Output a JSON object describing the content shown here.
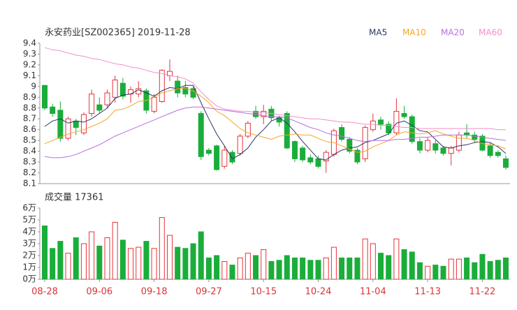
{
  "chart_data": [
    {
      "type": "candlestick",
      "title": "永安药业[SZ002365] 2019-11-28",
      "up_color": "#e8333a",
      "down_color": "#1aad3a",
      "ylim": [
        8.1,
        9.4
      ],
      "yticks": [
        9.4,
        9.3,
        9.2,
        9.1,
        9,
        8.9,
        8.8,
        8.7,
        8.6,
        8.5,
        8.4,
        8.3,
        8.2,
        8.1
      ],
      "open": [
        9.01,
        8.81,
        8.78,
        8.52,
        8.68,
        8.57,
        8.75,
        8.83,
        8.83,
        8.9,
        9.03,
        8.93,
        8.93,
        8.96,
        8.77,
        8.86,
        9.1,
        9.05,
        8.99,
        8.98,
        8.75,
        8.41,
        8.45,
        8.26,
        8.39,
        8.38,
        8.54,
        8.77,
        8.72,
        8.79,
        8.71,
        8.75,
        8.49,
        8.43,
        8.34,
        8.33,
        8.31,
        8.37,
        8.62,
        8.51,
        8.41,
        8.33,
        8.6,
        8.69,
        8.65,
        8.57,
        8.75,
        8.72,
        8.49,
        8.41,
        8.47,
        8.43,
        8.38,
        8.41,
        8.57,
        8.55,
        8.54,
        8.45,
        8.39,
        8.33
      ],
      "high": [
        9.01,
        8.84,
        8.86,
        8.72,
        8.7,
        8.76,
        8.97,
        8.9,
        8.97,
        9.1,
        9.08,
        9.0,
        9.05,
        8.98,
        8.93,
        9.16,
        9.25,
        9.1,
        9.05,
        9.0,
        8.77,
        8.43,
        8.46,
        8.45,
        8.41,
        8.56,
        8.68,
        8.82,
        8.83,
        8.82,
        8.73,
        8.77,
        8.5,
        8.45,
        8.37,
        8.36,
        8.41,
        8.61,
        8.65,
        8.53,
        8.43,
        8.64,
        8.75,
        8.72,
        8.68,
        8.89,
        8.82,
        8.74,
        8.52,
        8.53,
        8.5,
        8.45,
        8.45,
        8.58,
        8.65,
        8.58,
        8.56,
        8.48,
        8.41,
        8.36
      ],
      "low": [
        8.78,
        8.72,
        8.49,
        8.5,
        8.55,
        8.55,
        8.72,
        8.75,
        8.8,
        8.85,
        8.88,
        8.85,
        8.9,
        8.75,
        8.75,
        8.85,
        9.05,
        8.9,
        8.9,
        8.88,
        8.32,
        8.36,
        8.22,
        8.24,
        8.28,
        8.36,
        8.52,
        8.7,
        8.65,
        8.68,
        8.63,
        8.42,
        8.3,
        8.3,
        8.28,
        8.24,
        8.2,
        8.35,
        8.49,
        8.38,
        8.28,
        8.3,
        8.58,
        8.6,
        8.55,
        8.55,
        8.7,
        8.47,
        8.38,
        8.39,
        8.38,
        8.36,
        8.27,
        8.39,
        8.52,
        8.48,
        8.4,
        8.34,
        8.34,
        8.23
      ],
      "close": [
        8.8,
        8.75,
        8.52,
        8.7,
        8.62,
        8.74,
        8.93,
        8.78,
        8.94,
        9.06,
        8.91,
        8.97,
        8.98,
        8.78,
        8.9,
        9.15,
        9.14,
        8.94,
        8.93,
        8.9,
        8.35,
        8.38,
        8.23,
        8.41,
        8.3,
        8.54,
        8.66,
        8.72,
        8.77,
        8.71,
        8.67,
        8.43,
        8.33,
        8.32,
        8.3,
        8.26,
        8.39,
        8.59,
        8.51,
        8.4,
        8.3,
        8.62,
        8.68,
        8.65,
        8.57,
        8.77,
        8.72,
        8.49,
        8.41,
        8.5,
        8.41,
        8.38,
        8.43,
        8.55,
        8.55,
        8.51,
        8.41,
        8.36,
        8.36,
        8.25
      ],
      "series": [
        {
          "name": "MA5",
          "color": "#2b3566",
          "values": [
            8.63,
            8.68,
            8.7,
            8.66,
            8.68,
            8.67,
            8.7,
            8.75,
            8.8,
            8.89,
            8.92,
            8.93,
            8.97,
            8.94,
            8.91,
            8.96,
            8.99,
            8.98,
            9.01,
            9.01,
            8.85,
            8.7,
            8.56,
            8.45,
            8.33,
            8.37,
            8.43,
            8.53,
            8.6,
            8.68,
            8.71,
            8.66,
            8.58,
            8.49,
            8.41,
            8.33,
            8.32,
            8.37,
            8.41,
            8.43,
            8.44,
            8.48,
            8.5,
            8.53,
            8.56,
            8.66,
            8.68,
            8.64,
            8.59,
            8.58,
            8.51,
            8.44,
            8.43,
            8.45,
            8.46,
            8.48,
            8.49,
            8.48,
            8.44,
            8.38
          ]
        },
        {
          "name": "MA10",
          "color": "#f5a623",
          "values": [
            8.47,
            8.5,
            8.53,
            8.56,
            8.58,
            8.6,
            8.63,
            8.66,
            8.7,
            8.78,
            8.79,
            8.82,
            8.86,
            8.87,
            8.9,
            8.94,
            8.96,
            8.98,
            8.98,
            8.96,
            8.91,
            8.85,
            8.77,
            8.73,
            8.67,
            8.61,
            8.57,
            8.55,
            8.53,
            8.51,
            8.54,
            8.55,
            8.56,
            8.55,
            8.55,
            8.52,
            8.49,
            8.48,
            8.45,
            8.42,
            8.39,
            8.4,
            8.44,
            8.47,
            8.5,
            8.55,
            8.58,
            8.57,
            8.56,
            8.57,
            8.59,
            8.56,
            8.54,
            8.52,
            8.52,
            8.5,
            8.47,
            8.46,
            8.45,
            8.42
          ]
        },
        {
          "name": "MA20",
          "color": "#b86ee0",
          "values": [
            8.35,
            8.34,
            8.34,
            8.35,
            8.37,
            8.4,
            8.43,
            8.46,
            8.5,
            8.54,
            8.57,
            8.6,
            8.63,
            8.66,
            8.69,
            8.72,
            8.75,
            8.78,
            8.8,
            8.81,
            8.81,
            8.8,
            8.79,
            8.78,
            8.77,
            8.76,
            8.75,
            8.74,
            8.73,
            8.72,
            8.72,
            8.71,
            8.68,
            8.65,
            8.62,
            8.6,
            8.57,
            8.55,
            8.54,
            8.52,
            8.5,
            8.49,
            8.5,
            8.5,
            8.5,
            8.51,
            8.51,
            8.52,
            8.53,
            8.53,
            8.54,
            8.55,
            8.55,
            8.55,
            8.55,
            8.54,
            8.53,
            8.52,
            8.51,
            8.5
          ]
        },
        {
          "name": "MA60",
          "color": "#f28fca",
          "values": [
            9.36,
            9.34,
            9.33,
            9.31,
            9.29,
            9.28,
            9.26,
            9.25,
            9.23,
            9.21,
            9.2,
            9.18,
            9.17,
            9.15,
            9.13,
            9.12,
            9.1,
            9.09,
            9.07,
            9.03,
            8.95,
            8.88,
            8.82,
            8.79,
            8.78,
            8.77,
            8.77,
            8.76,
            8.76,
            8.75,
            8.74,
            8.73,
            8.72,
            8.71,
            8.7,
            8.7,
            8.69,
            8.68,
            8.67,
            8.67,
            8.66,
            8.65,
            8.65,
            8.64,
            8.64,
            8.63,
            8.62,
            8.62,
            8.61,
            8.61,
            8.61,
            8.61,
            8.61,
            8.61,
            8.61,
            8.61,
            8.61,
            8.61,
            8.6,
            8.6
          ]
        }
      ]
    },
    {
      "type": "bar",
      "title": "成交量 17361",
      "categories": [
        "08-28",
        null,
        null,
        null,
        null,
        null,
        null,
        "09-06",
        null,
        null,
        null,
        null,
        null,
        null,
        "09-18",
        null,
        null,
        null,
        null,
        null,
        null,
        "09-27",
        null,
        null,
        null,
        null,
        null,
        null,
        "10-15",
        null,
        null,
        null,
        null,
        null,
        null,
        "10-24",
        null,
        null,
        null,
        null,
        null,
        null,
        "11-04",
        null,
        null,
        null,
        null,
        null,
        null,
        "11-13",
        null,
        null,
        null,
        null,
        null,
        null,
        "11-22",
        null,
        null,
        null
      ],
      "values": [
        4.5,
        2.6,
        3.2,
        2.2,
        3.5,
        3.0,
        4.0,
        2.8,
        3.5,
        4.8,
        3.3,
        2.6,
        2.7,
        3.2,
        2.6,
        5.2,
        3.7,
        2.7,
        2.6,
        3.0,
        4.0,
        1.8,
        2.0,
        1.5,
        1.2,
        1.8,
        2.2,
        2.0,
        2.5,
        1.5,
        1.6,
        2.0,
        1.8,
        1.8,
        1.6,
        1.6,
        1.8,
        2.7,
        1.8,
        1.8,
        1.8,
        3.4,
        3.0,
        2.2,
        2.0,
        3.4,
        2.5,
        2.3,
        1.4,
        1.1,
        1.2,
        1.1,
        1.7,
        1.7,
        1.8,
        1.4,
        2.1,
        1.5,
        1.6,
        1.8
      ],
      "ylim": [
        0,
        6
      ],
      "yticks": [
        {
          "value": 6,
          "label": "6万"
        },
        {
          "value": 5,
          "label": "5万"
        },
        {
          "value": 4,
          "label": "4万"
        },
        {
          "value": 3,
          "label": "3万"
        },
        {
          "value": 2,
          "label": "2万"
        },
        {
          "value": 1,
          "label": "1万"
        },
        {
          "value": 0,
          "label": "0万"
        }
      ],
      "label_color": "#d9343a"
    }
  ]
}
